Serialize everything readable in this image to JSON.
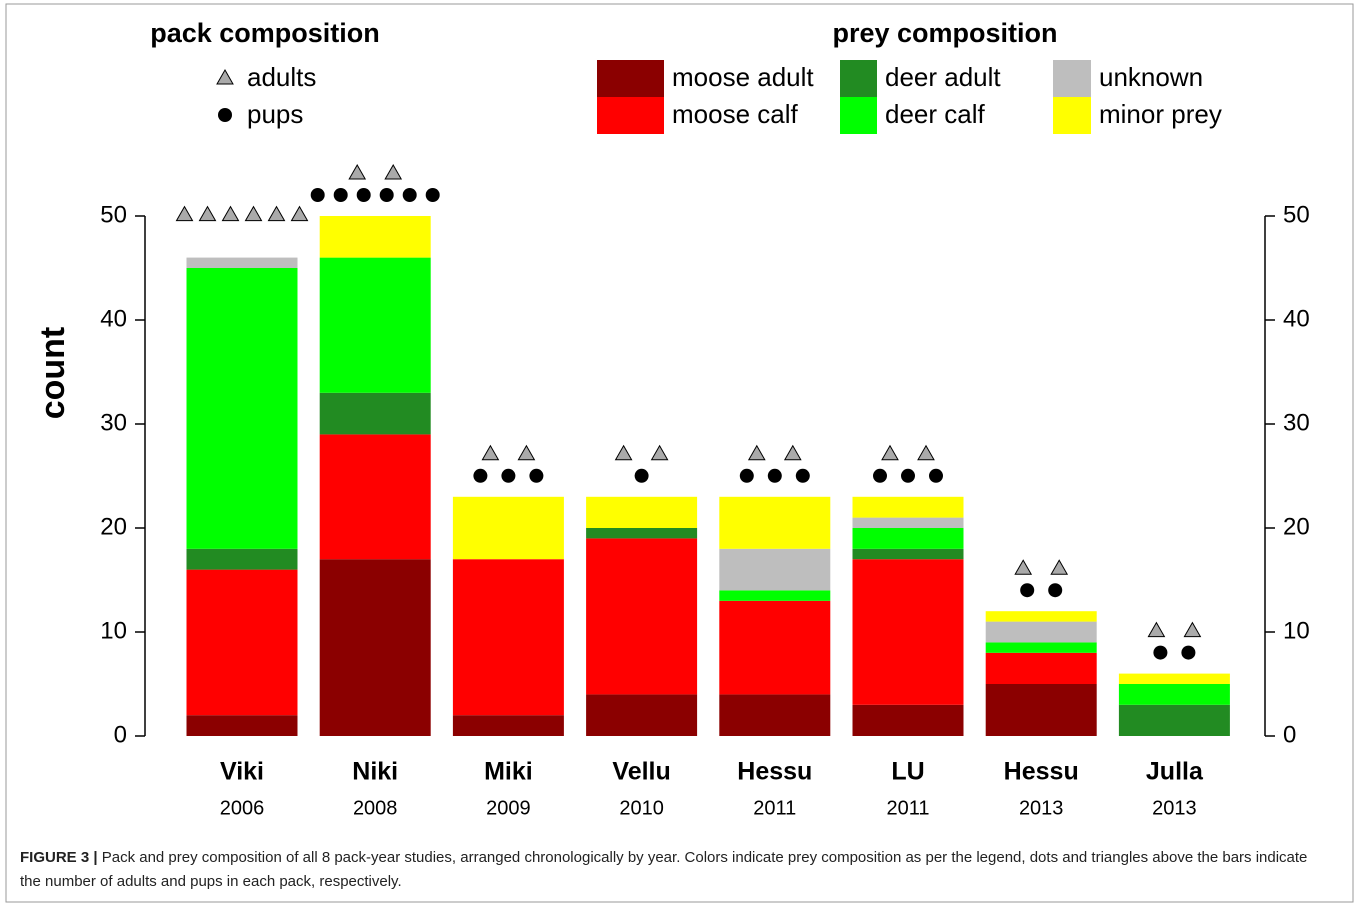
{
  "chart_data": {
    "type": "stacked-bar",
    "pack_legend_title": "pack composition",
    "prey_legend_title": "prey composition",
    "ylabel": "count",
    "categories": [
      "Viki",
      "Niki",
      "Miki",
      "Vellu",
      "Hessu",
      "LU",
      "Hessu",
      "Julla"
    ],
    "years": [
      "2006",
      "2008",
      "2009",
      "2010",
      "2011",
      "2011",
      "2013",
      "2013"
    ],
    "series": [
      {
        "name": "moose adult",
        "color": "#8b0000",
        "values": [
          2,
          17,
          2,
          4,
          4,
          3,
          5,
          0
        ]
      },
      {
        "name": "moose calf",
        "color": "#ff0000",
        "values": [
          14,
          12,
          15,
          15,
          9,
          14,
          3,
          0
        ]
      },
      {
        "name": "deer adult",
        "color": "#228b22",
        "values": [
          2,
          4,
          0,
          1,
          0,
          1,
          0,
          3
        ]
      },
      {
        "name": "deer calf",
        "color": "#00ff00",
        "values": [
          27,
          13,
          0,
          0,
          1,
          2,
          1,
          2
        ]
      },
      {
        "name": "unknown",
        "color": "#bebebe",
        "values": [
          1,
          0,
          0,
          0,
          4,
          1,
          2,
          0
        ]
      },
      {
        "name": "minor prey",
        "color": "#ffff00",
        "values": [
          0,
          4,
          6,
          3,
          5,
          2,
          1,
          1
        ]
      }
    ],
    "pack": {
      "adults_label": "adults",
      "pups_label": "pups",
      "adults": [
        6,
        2,
        2,
        2,
        2,
        2,
        2,
        2
      ],
      "pups": [
        0,
        6,
        3,
        1,
        3,
        3,
        2,
        2
      ]
    },
    "ylim": [
      0,
      50
    ],
    "yticks": [
      0,
      10,
      20,
      30,
      40,
      50
    ],
    "right_axis": true,
    "caption_label": "FIGURE 3 |",
    "caption": "Pack and prey composition of all 8 pack-year studies, arranged chronologically by year. Colors indicate prey composition as per the legend, dots and triangles above the bars indicate the number of adults and pups in each pack, respectively."
  }
}
